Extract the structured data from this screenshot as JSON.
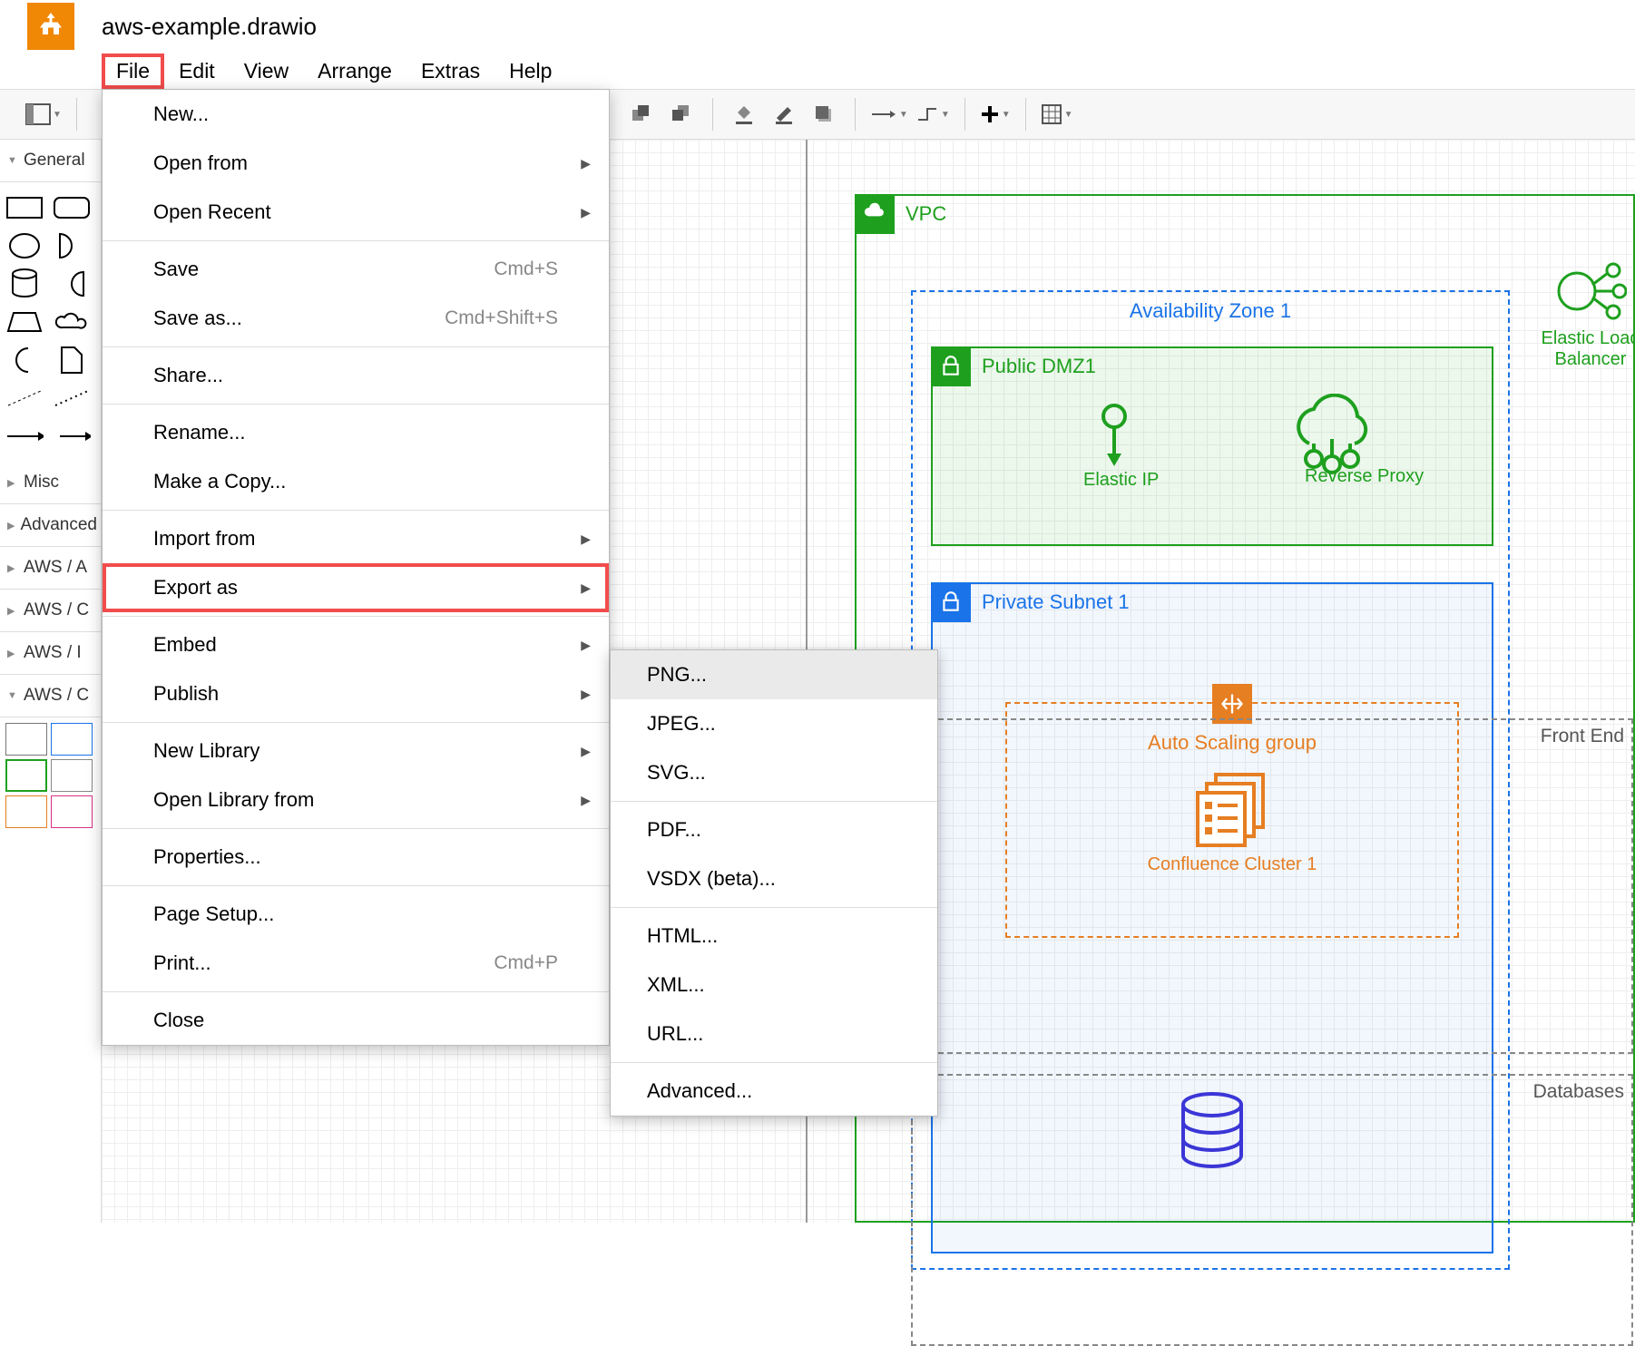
{
  "doc_title": "aws-example.drawio",
  "menubar": [
    "File",
    "Edit",
    "View",
    "Arrange",
    "Extras",
    "Help"
  ],
  "menubar_highlight_index": 0,
  "file_menu": {
    "highlight_index": 10,
    "items": [
      {
        "label": "New..."
      },
      {
        "label": "Open from",
        "submenu": true
      },
      {
        "label": "Open Recent",
        "submenu": true
      },
      {
        "sep": true
      },
      {
        "label": "Save",
        "shortcut": "Cmd+S"
      },
      {
        "label": "Save as...",
        "shortcut": "Cmd+Shift+S"
      },
      {
        "sep": true
      },
      {
        "label": "Share..."
      },
      {
        "sep": true
      },
      {
        "label": "Rename..."
      },
      {
        "label": "Make a Copy..."
      },
      {
        "sep": true
      },
      {
        "label": "Import from",
        "submenu": true
      },
      {
        "label": "Export as",
        "submenu": true
      },
      {
        "sep": true
      },
      {
        "label": "Embed",
        "submenu": true
      },
      {
        "label": "Publish",
        "submenu": true
      },
      {
        "sep": true
      },
      {
        "label": "New Library",
        "submenu": true
      },
      {
        "label": "Open Library from",
        "submenu": true
      },
      {
        "sep": true
      },
      {
        "label": "Properties..."
      },
      {
        "sep": true
      },
      {
        "label": "Page Setup..."
      },
      {
        "label": "Print...",
        "shortcut": "Cmd+P"
      },
      {
        "sep": true
      },
      {
        "label": "Close"
      }
    ]
  },
  "export_submenu": {
    "highlight_label": "Export as",
    "hovered_index": 0,
    "items": [
      {
        "label": "PNG..."
      },
      {
        "label": "JPEG..."
      },
      {
        "label": "SVG..."
      },
      {
        "sep": true
      },
      {
        "label": "PDF..."
      },
      {
        "label": "VSDX (beta)..."
      },
      {
        "sep": true
      },
      {
        "label": "HTML..."
      },
      {
        "label": "XML..."
      },
      {
        "label": "URL..."
      },
      {
        "sep": true
      },
      {
        "label": "Advanced..."
      }
    ]
  },
  "sidebar_sections": [
    {
      "label": "General",
      "open": true
    },
    {
      "label": "Misc",
      "open": false
    },
    {
      "label": "Advanced",
      "open": false
    },
    {
      "label": "AWS / A",
      "open": false
    },
    {
      "label": "AWS / C",
      "open": false
    },
    {
      "label": "AWS / I",
      "open": false
    },
    {
      "label": "AWS / C",
      "open": true
    }
  ],
  "diagram": {
    "vpc_label": "VPC",
    "az_label": "Availability Zone 1",
    "public_label": "Public DMZ1",
    "private_label": "Private Subnet 1",
    "elastic_ip": "Elastic IP",
    "reverse_proxy": "Reverse Proxy",
    "elb": "Elastic Load Balancer",
    "asg_label": "Auto Scaling group",
    "confluence": "Confluence Cluster 1",
    "frontend": "Front End",
    "databases": "Databases",
    "colors": {
      "green": "#1ea01e",
      "blue": "#1a73e8",
      "orange": "#e67e22",
      "purple": "#3b36d6"
    }
  }
}
